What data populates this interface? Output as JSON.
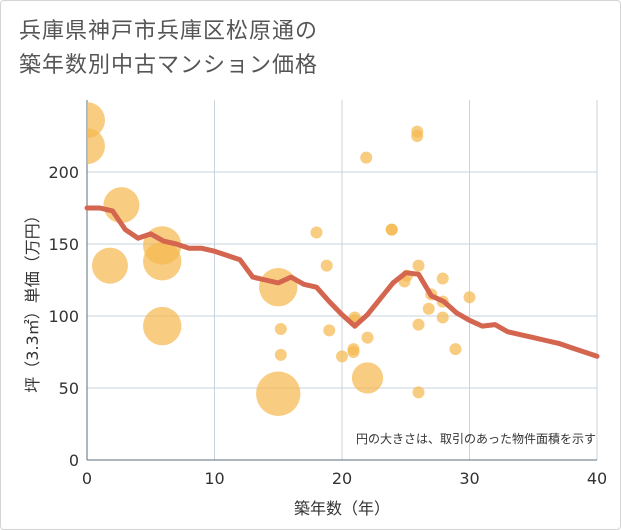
{
  "title_line1": "兵庫県神戸市兵庫区松原通の",
  "title_line2": "築年数別中古マンション価格",
  "note": "円の大きさは、取引のあった物件面積を示す",
  "colors": {
    "bubble": "#f5b84d",
    "line": "#d4654f",
    "grid": "#c8d3dc"
  },
  "chart_data": {
    "type": "scatter",
    "xlabel": "築年数（年）",
    "ylabel": "坪（3.3㎡）単価（万円）",
    "xlim": [
      0,
      40
    ],
    "ylim": [
      0,
      250
    ],
    "xticks": [
      0,
      10,
      20,
      30,
      40
    ],
    "yticks": [
      0,
      50,
      100,
      150,
      200
    ],
    "grid": true,
    "bubbles": [
      {
        "x": 0,
        "y": 236,
        "s": 3
      },
      {
        "x": 0,
        "y": 218,
        "s": 3
      },
      {
        "x": 2.7,
        "y": 177,
        "s": 3
      },
      {
        "x": 1.8,
        "y": 135,
        "s": 3
      },
      {
        "x": 5.9,
        "y": 149,
        "s": 3.2
      },
      {
        "x": 5.9,
        "y": 138,
        "s": 3.2
      },
      {
        "x": 5.9,
        "y": 93,
        "s": 3.2
      },
      {
        "x": 15,
        "y": 120,
        "s": 3.2
      },
      {
        "x": 15,
        "y": 46,
        "s": 3.7
      },
      {
        "x": 15.2,
        "y": 91,
        "s": 1
      },
      {
        "x": 15.2,
        "y": 73,
        "s": 1
      },
      {
        "x": 18,
        "y": 158,
        "s": 1
      },
      {
        "x": 18.8,
        "y": 135,
        "s": 1
      },
      {
        "x": 19,
        "y": 90,
        "s": 1
      },
      {
        "x": 20,
        "y": 72,
        "s": 1
      },
      {
        "x": 20.9,
        "y": 75,
        "s": 1
      },
      {
        "x": 20.9,
        "y": 77,
        "s": 1
      },
      {
        "x": 21,
        "y": 97,
        "s": 1
      },
      {
        "x": 21,
        "y": 99,
        "s": 1
      },
      {
        "x": 21.9,
        "y": 210,
        "s": 1
      },
      {
        "x": 22,
        "y": 85,
        "s": 1
      },
      {
        "x": 22,
        "y": 57,
        "s": 2.6
      },
      {
        "x": 23.9,
        "y": 160,
        "s": 1
      },
      {
        "x": 23.9,
        "y": 160,
        "s": 1
      },
      {
        "x": 24.9,
        "y": 124,
        "s": 1
      },
      {
        "x": 25.1,
        "y": 128,
        "s": 1
      },
      {
        "x": 25.9,
        "y": 228,
        "s": 1
      },
      {
        "x": 25.9,
        "y": 225,
        "s": 1
      },
      {
        "x": 26,
        "y": 135,
        "s": 1
      },
      {
        "x": 26,
        "y": 94,
        "s": 1
      },
      {
        "x": 26,
        "y": 47,
        "s": 1
      },
      {
        "x": 26.8,
        "y": 105,
        "s": 1
      },
      {
        "x": 27,
        "y": 115,
        "s": 1
      },
      {
        "x": 27.9,
        "y": 126,
        "s": 1
      },
      {
        "x": 27.9,
        "y": 110,
        "s": 1
      },
      {
        "x": 27.9,
        "y": 99,
        "s": 1
      },
      {
        "x": 28.9,
        "y": 77,
        "s": 1
      },
      {
        "x": 30,
        "y": 113,
        "s": 1
      }
    ],
    "trend": {
      "x": [
        0,
        1,
        2,
        3,
        4,
        5,
        6,
        7,
        8,
        9,
        10,
        11,
        12,
        13,
        14,
        15,
        16,
        17,
        18,
        19,
        20,
        21,
        22,
        23,
        24,
        25,
        26,
        27,
        28,
        29,
        30,
        31,
        32,
        33,
        34,
        35,
        36,
        37,
        38,
        39,
        40
      ],
      "y": [
        175,
        175,
        173,
        160,
        154,
        157,
        152,
        150,
        147,
        147,
        145,
        142,
        139,
        127,
        125,
        123,
        127,
        122,
        120,
        110,
        101,
        93,
        101,
        112,
        123,
        130,
        129,
        114,
        110,
        102,
        97,
        93,
        94,
        89,
        87,
        85,
        83,
        81,
        78,
        75,
        72
      ]
    }
  }
}
